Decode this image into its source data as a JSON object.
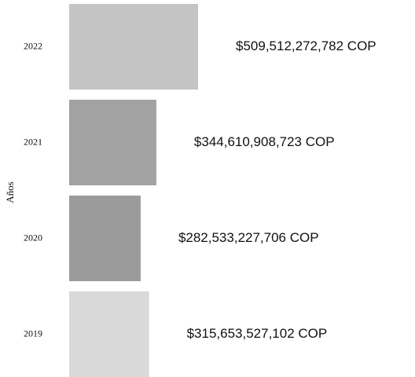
{
  "chart_data": {
    "type": "barh",
    "y_label": "Años",
    "categories": [
      "2022",
      "2021",
      "2020",
      "2019"
    ],
    "values": [
      509512272782,
      344610908723,
      282533227706,
      315653527102
    ],
    "value_labels": [
      "$509,512,272,782 COP",
      "$344,610,908,723 COP",
      "$282,533,227,706 COP",
      "$315,653,527,102 COP"
    ],
    "colors": [
      "#c4c4c4",
      "#a2a2a2",
      "#9b9b9b",
      "#d9d9d9"
    ]
  }
}
